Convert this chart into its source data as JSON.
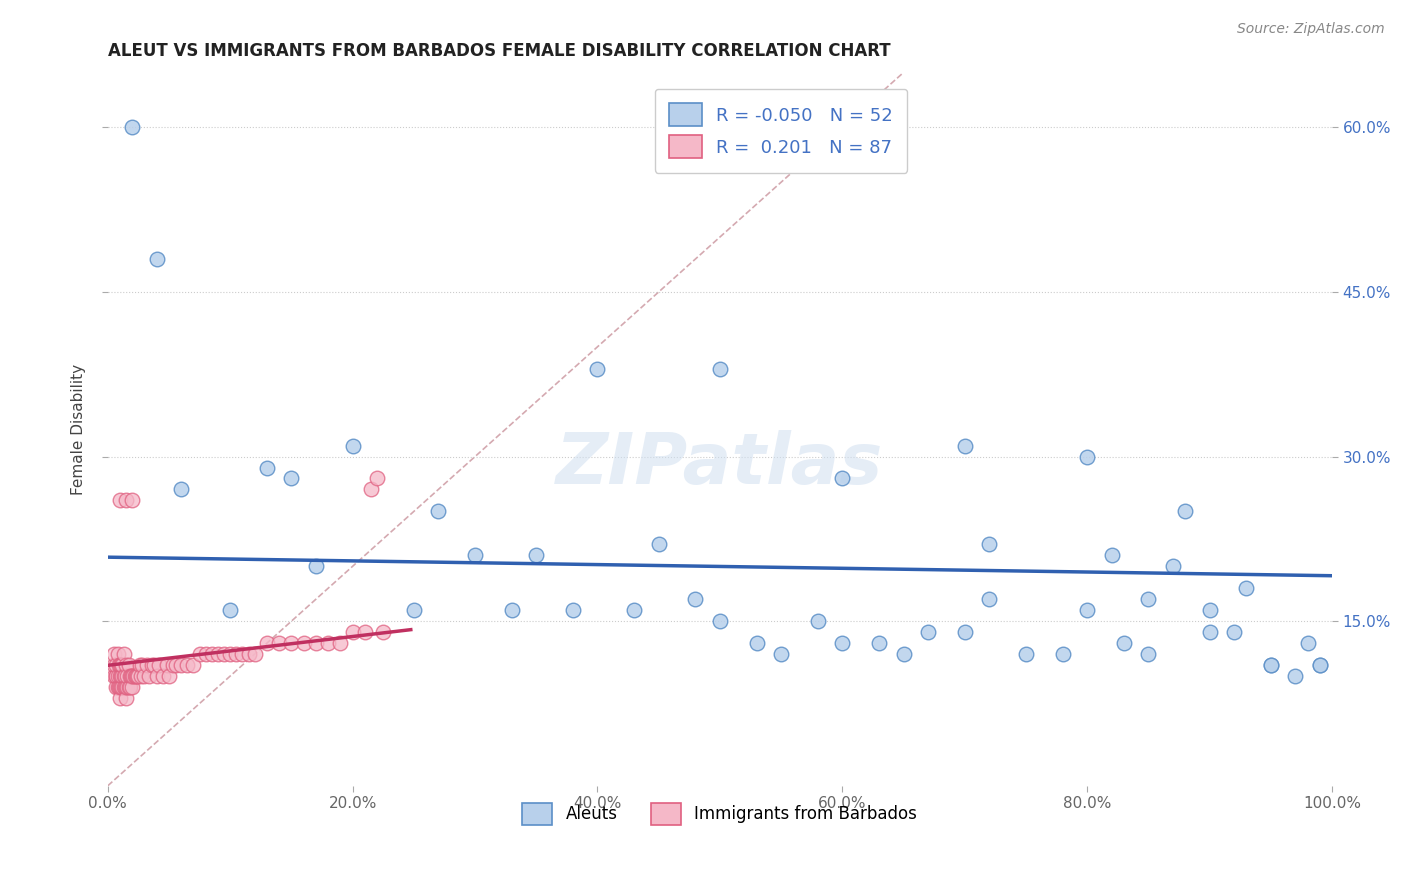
{
  "title": "ALEUT VS IMMIGRANTS FROM BARBADOS FEMALE DISABILITY CORRELATION CHART",
  "source": "Source: ZipAtlas.com",
  "ylabel": "Female Disability",
  "xlim": [
    0,
    1.0
  ],
  "ylim": [
    0,
    0.65
  ],
  "xticks": [
    0.0,
    0.2,
    0.4,
    0.6,
    0.8,
    1.0
  ],
  "yticks": [
    0.15,
    0.3,
    0.45,
    0.6
  ],
  "ytick_labels": [
    "15.0%",
    "30.0%",
    "45.0%",
    "60.0%"
  ],
  "xtick_labels": [
    "0.0%",
    "20.0%",
    "40.0%",
    "60.0%",
    "80.0%",
    "100.0%"
  ],
  "aleuts_R": -0.05,
  "aleuts_N": 52,
  "barbados_R": 0.201,
  "barbados_N": 87,
  "aleut_color": "#b8d0eb",
  "barbados_color": "#f5b8c8",
  "aleut_edge_color": "#5b8fc7",
  "barbados_edge_color": "#e06080",
  "aleut_line_color": "#3060b0",
  "barbados_line_color": "#c03060",
  "diag_line_color": "#d0a0a8",
  "legend_label_aleuts": "Aleuts",
  "legend_label_barbados": "Immigrants from Barbados",
  "background_color": "#ffffff",
  "aleuts_x": [
    0.02,
    0.04,
    0.06,
    0.1,
    0.13,
    0.15,
    0.17,
    0.2,
    0.25,
    0.27,
    0.3,
    0.33,
    0.35,
    0.38,
    0.4,
    0.43,
    0.45,
    0.48,
    0.5,
    0.53,
    0.55,
    0.58,
    0.6,
    0.63,
    0.65,
    0.67,
    0.7,
    0.72,
    0.75,
    0.78,
    0.8,
    0.83,
    0.85,
    0.87,
    0.88,
    0.9,
    0.92,
    0.93,
    0.95,
    0.97,
    0.98,
    0.99,
    0.5,
    0.6,
    0.7,
    0.72,
    0.8,
    0.82,
    0.85,
    0.9,
    0.95,
    0.99
  ],
  "aleuts_y": [
    0.6,
    0.48,
    0.27,
    0.16,
    0.29,
    0.28,
    0.2,
    0.31,
    0.16,
    0.25,
    0.21,
    0.16,
    0.21,
    0.16,
    0.38,
    0.16,
    0.22,
    0.17,
    0.15,
    0.13,
    0.12,
    0.15,
    0.13,
    0.13,
    0.12,
    0.14,
    0.14,
    0.17,
    0.12,
    0.12,
    0.16,
    0.13,
    0.12,
    0.2,
    0.25,
    0.16,
    0.14,
    0.18,
    0.11,
    0.1,
    0.13,
    0.11,
    0.38,
    0.28,
    0.31,
    0.22,
    0.3,
    0.21,
    0.17,
    0.14,
    0.11,
    0.11
  ],
  "barbados_x": [
    0.005,
    0.005,
    0.005,
    0.007,
    0.007,
    0.007,
    0.007,
    0.008,
    0.008,
    0.008,
    0.009,
    0.009,
    0.01,
    0.01,
    0.01,
    0.01,
    0.011,
    0.011,
    0.011,
    0.012,
    0.012,
    0.012,
    0.013,
    0.013,
    0.013,
    0.014,
    0.014,
    0.015,
    0.015,
    0.015,
    0.016,
    0.016,
    0.017,
    0.017,
    0.018,
    0.018,
    0.019,
    0.02,
    0.02,
    0.021,
    0.022,
    0.023,
    0.024,
    0.025,
    0.026,
    0.027,
    0.028,
    0.03,
    0.032,
    0.034,
    0.036,
    0.038,
    0.04,
    0.042,
    0.045,
    0.048,
    0.05,
    0.053,
    0.056,
    0.06,
    0.065,
    0.07,
    0.075,
    0.08,
    0.085,
    0.09,
    0.095,
    0.1,
    0.105,
    0.11,
    0.115,
    0.12,
    0.13,
    0.14,
    0.15,
    0.16,
    0.17,
    0.18,
    0.19,
    0.2,
    0.21,
    0.215,
    0.22,
    0.225,
    0.01,
    0.015,
    0.02
  ],
  "barbados_y": [
    0.1,
    0.11,
    0.12,
    0.09,
    0.1,
    0.1,
    0.11,
    0.09,
    0.1,
    0.12,
    0.09,
    0.11,
    0.08,
    0.09,
    0.1,
    0.11,
    0.09,
    0.1,
    0.11,
    0.09,
    0.1,
    0.11,
    0.09,
    0.1,
    0.12,
    0.09,
    0.1,
    0.08,
    0.09,
    0.11,
    0.09,
    0.1,
    0.09,
    0.11,
    0.09,
    0.1,
    0.1,
    0.09,
    0.1,
    0.1,
    0.1,
    0.1,
    0.1,
    0.1,
    0.11,
    0.1,
    0.11,
    0.1,
    0.11,
    0.1,
    0.11,
    0.11,
    0.1,
    0.11,
    0.1,
    0.11,
    0.1,
    0.11,
    0.11,
    0.11,
    0.11,
    0.11,
    0.12,
    0.12,
    0.12,
    0.12,
    0.12,
    0.12,
    0.12,
    0.12,
    0.12,
    0.12,
    0.13,
    0.13,
    0.13,
    0.13,
    0.13,
    0.13,
    0.13,
    0.14,
    0.14,
    0.27,
    0.28,
    0.14,
    0.26,
    0.26,
    0.26
  ]
}
